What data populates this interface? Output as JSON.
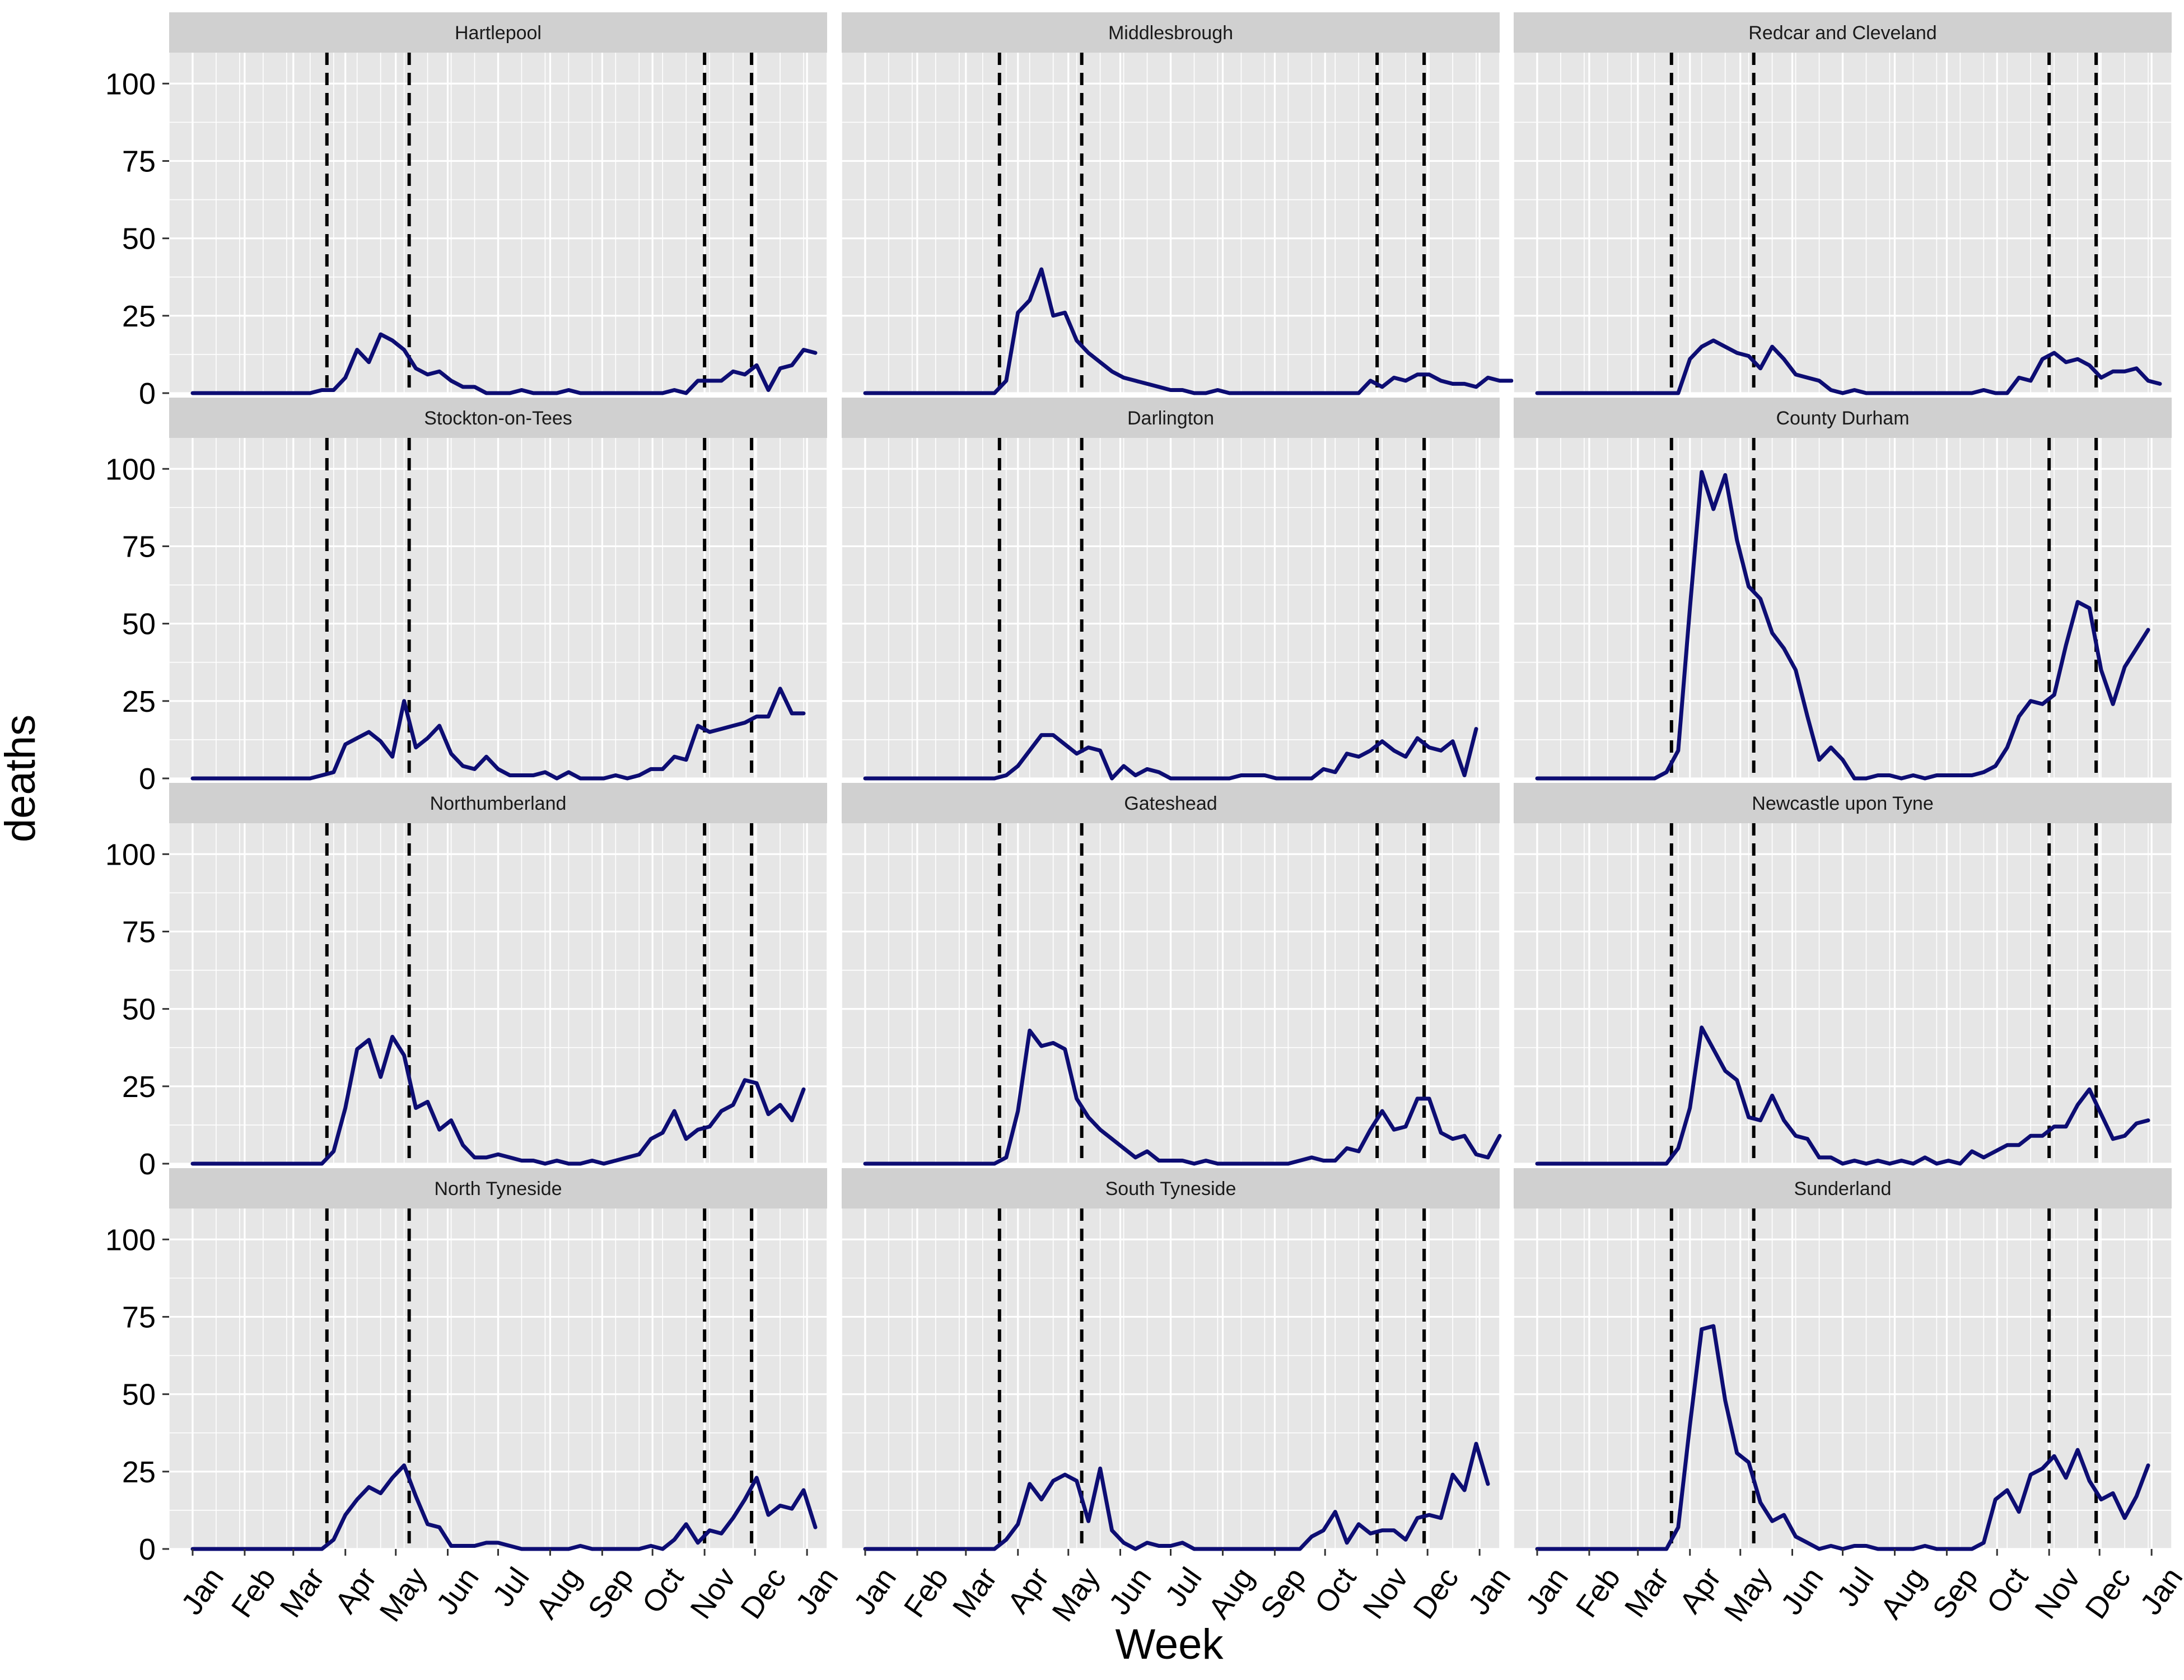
{
  "chart_data": {
    "type": "line",
    "layout": "facet-grid",
    "facet_rows": 4,
    "facet_cols": 3,
    "xlabel": "Week",
    "ylabel": "deaths",
    "ylim": [
      0,
      110
    ],
    "y_ticks": [
      0,
      25,
      50,
      75,
      100
    ],
    "xlim": [
      -2,
      54
    ],
    "x_ticks": [
      {
        "label": "Jan",
        "week": 0
      },
      {
        "label": "Feb",
        "week": 4.43
      },
      {
        "label": "Mar",
        "week": 8.57
      },
      {
        "label": "Apr",
        "week": 13
      },
      {
        "label": "May",
        "week": 17.29
      },
      {
        "label": "Jun",
        "week": 21.71
      },
      {
        "label": "Jul",
        "week": 26
      },
      {
        "label": "Aug",
        "week": 30.43
      },
      {
        "label": "Sep",
        "week": 34.86
      },
      {
        "label": "Oct",
        "week": 39.14
      },
      {
        "label": "Nov",
        "week": 43.57
      },
      {
        "label": "Dec",
        "week": 47.86
      },
      {
        "label": "Jan",
        "week": 52.29
      }
    ],
    "vlines_week": [
      11.43,
      18.43,
      43.57,
      47.57
    ],
    "grid": true,
    "line_color": "#0d0d73",
    "vline_color": "#000000",
    "panel_bg": "#e6e6e6",
    "strip_bg": "#d0d0d0",
    "panels": [
      {
        "title": "Hartlepool",
        "values": [
          0,
          0,
          0,
          0,
          0,
          0,
          0,
          0,
          0,
          0,
          0,
          1,
          1,
          5,
          14,
          10,
          19,
          17,
          14,
          8,
          6,
          7,
          4,
          2,
          2,
          0,
          0,
          0,
          1,
          0,
          0,
          0,
          1,
          0,
          0,
          0,
          0,
          0,
          0,
          0,
          0,
          1,
          0,
          4,
          4,
          4,
          7,
          6,
          9,
          1,
          8,
          9,
          14,
          13
        ]
      },
      {
        "title": "Middlesbrough",
        "values": [
          0,
          0,
          0,
          0,
          0,
          0,
          0,
          0,
          0,
          0,
          0,
          0,
          4,
          26,
          30,
          40,
          25,
          26,
          17,
          13,
          10,
          7,
          5,
          4,
          3,
          2,
          1,
          1,
          0,
          0,
          1,
          0,
          0,
          0,
          0,
          0,
          0,
          0,
          0,
          0,
          0,
          0,
          0,
          4,
          2,
          5,
          4,
          6,
          6,
          4,
          3,
          3,
          2,
          5,
          4,
          4
        ]
      },
      {
        "title": "Redcar and Cleveland",
        "values": [
          0,
          0,
          0,
          0,
          0,
          0,
          0,
          0,
          0,
          0,
          0,
          0,
          0,
          11,
          15,
          17,
          15,
          13,
          12,
          8,
          15,
          11,
          6,
          5,
          4,
          1,
          0,
          1,
          0,
          0,
          0,
          0,
          0,
          0,
          0,
          0,
          0,
          0,
          1,
          0,
          0,
          5,
          4,
          11,
          13,
          10,
          11,
          9,
          5,
          7,
          7,
          8,
          4,
          3
        ]
      },
      {
        "title": "Stockton-on-Tees",
        "values": [
          0,
          0,
          0,
          0,
          0,
          0,
          0,
          0,
          0,
          0,
          0,
          1,
          2,
          11,
          13,
          15,
          12,
          7,
          25,
          10,
          13,
          17,
          8,
          4,
          3,
          7,
          3,
          1,
          1,
          1,
          2,
          0,
          2,
          0,
          0,
          0,
          1,
          0,
          1,
          3,
          3,
          7,
          6,
          17,
          15,
          16,
          17,
          18,
          20,
          20,
          29,
          21,
          21
        ]
      },
      {
        "title": "Darlington",
        "values": [
          0,
          0,
          0,
          0,
          0,
          0,
          0,
          0,
          0,
          0,
          0,
          0,
          1,
          4,
          9,
          14,
          14,
          11,
          8,
          10,
          9,
          0,
          4,
          1,
          3,
          2,
          0,
          0,
          0,
          0,
          0,
          0,
          1,
          1,
          1,
          0,
          0,
          0,
          0,
          3,
          2,
          8,
          7,
          9,
          12,
          9,
          7,
          13,
          10,
          9,
          12,
          1,
          16
        ]
      },
      {
        "title": "County Durham",
        "values": [
          0,
          0,
          0,
          0,
          0,
          0,
          0,
          0,
          0,
          0,
          0,
          2,
          9,
          55,
          99,
          87,
          98,
          77,
          62,
          58,
          47,
          42,
          35,
          20,
          6,
          10,
          6,
          0,
          0,
          1,
          1,
          0,
          1,
          0,
          1,
          1,
          1,
          1,
          2,
          4,
          10,
          20,
          25,
          24,
          27,
          43,
          57,
          55,
          35,
          24,
          36,
          42,
          48
        ]
      },
      {
        "title": "Northumberland",
        "values": [
          0,
          0,
          0,
          0,
          0,
          0,
          0,
          0,
          0,
          0,
          0,
          0,
          4,
          18,
          37,
          40,
          28,
          41,
          35,
          18,
          20,
          11,
          14,
          6,
          2,
          2,
          3,
          2,
          1,
          1,
          0,
          1,
          0,
          0,
          1,
          0,
          1,
          2,
          3,
          8,
          10,
          17,
          8,
          11,
          12,
          17,
          19,
          27,
          26,
          16,
          19,
          14,
          24
        ]
      },
      {
        "title": "Gateshead",
        "values": [
          0,
          0,
          0,
          0,
          0,
          0,
          0,
          0,
          0,
          0,
          0,
          0,
          2,
          17,
          43,
          38,
          39,
          37,
          21,
          15,
          11,
          8,
          5,
          2,
          4,
          1,
          1,
          1,
          0,
          1,
          0,
          0,
          0,
          0,
          0,
          0,
          0,
          1,
          2,
          1,
          1,
          5,
          4,
          11,
          17,
          11,
          12,
          21,
          21,
          10,
          8,
          9,
          3,
          2,
          9
        ]
      },
      {
        "title": "Newcastle upon Tyne",
        "values": [
          0,
          0,
          0,
          0,
          0,
          0,
          0,
          0,
          0,
          0,
          0,
          0,
          5,
          18,
          44,
          37,
          30,
          27,
          15,
          14,
          22,
          14,
          9,
          8,
          2,
          2,
          0,
          1,
          0,
          1,
          0,
          1,
          0,
          2,
          0,
          1,
          0,
          4,
          2,
          4,
          6,
          6,
          9,
          9,
          12,
          12,
          19,
          24,
          16,
          8,
          9,
          13,
          14
        ]
      },
      {
        "title": "North Tyneside",
        "values": [
          0,
          0,
          0,
          0,
          0,
          0,
          0,
          0,
          0,
          0,
          0,
          0,
          3,
          11,
          16,
          20,
          18,
          23,
          27,
          17,
          8,
          7,
          1,
          1,
          1,
          2,
          2,
          1,
          0,
          0,
          0,
          0,
          0,
          1,
          0,
          0,
          0,
          0,
          0,
          1,
          0,
          3,
          8,
          2,
          6,
          5,
          10,
          16,
          23,
          11,
          14,
          13,
          19,
          7
        ]
      },
      {
        "title": "South Tyneside",
        "values": [
          0,
          0,
          0,
          0,
          0,
          0,
          0,
          0,
          0,
          0,
          0,
          0,
          3,
          8,
          21,
          16,
          22,
          24,
          22,
          9,
          26,
          6,
          2,
          0,
          2,
          1,
          1,
          2,
          0,
          0,
          0,
          0,
          0,
          0,
          0,
          0,
          0,
          0,
          4,
          6,
          12,
          2,
          8,
          5,
          6,
          6,
          3,
          10,
          11,
          10,
          24,
          19,
          34,
          21
        ]
      },
      {
        "title": "Sunderland",
        "values": [
          0,
          0,
          0,
          0,
          0,
          0,
          0,
          0,
          0,
          0,
          0,
          0,
          7,
          40,
          71,
          72,
          48,
          31,
          28,
          15,
          9,
          11,
          4,
          2,
          0,
          1,
          0,
          1,
          1,
          0,
          0,
          0,
          0,
          1,
          0,
          0,
          0,
          0,
          2,
          16,
          19,
          12,
          24,
          26,
          30,
          23,
          32,
          22,
          16,
          18,
          10,
          17,
          27
        ]
      }
    ]
  }
}
